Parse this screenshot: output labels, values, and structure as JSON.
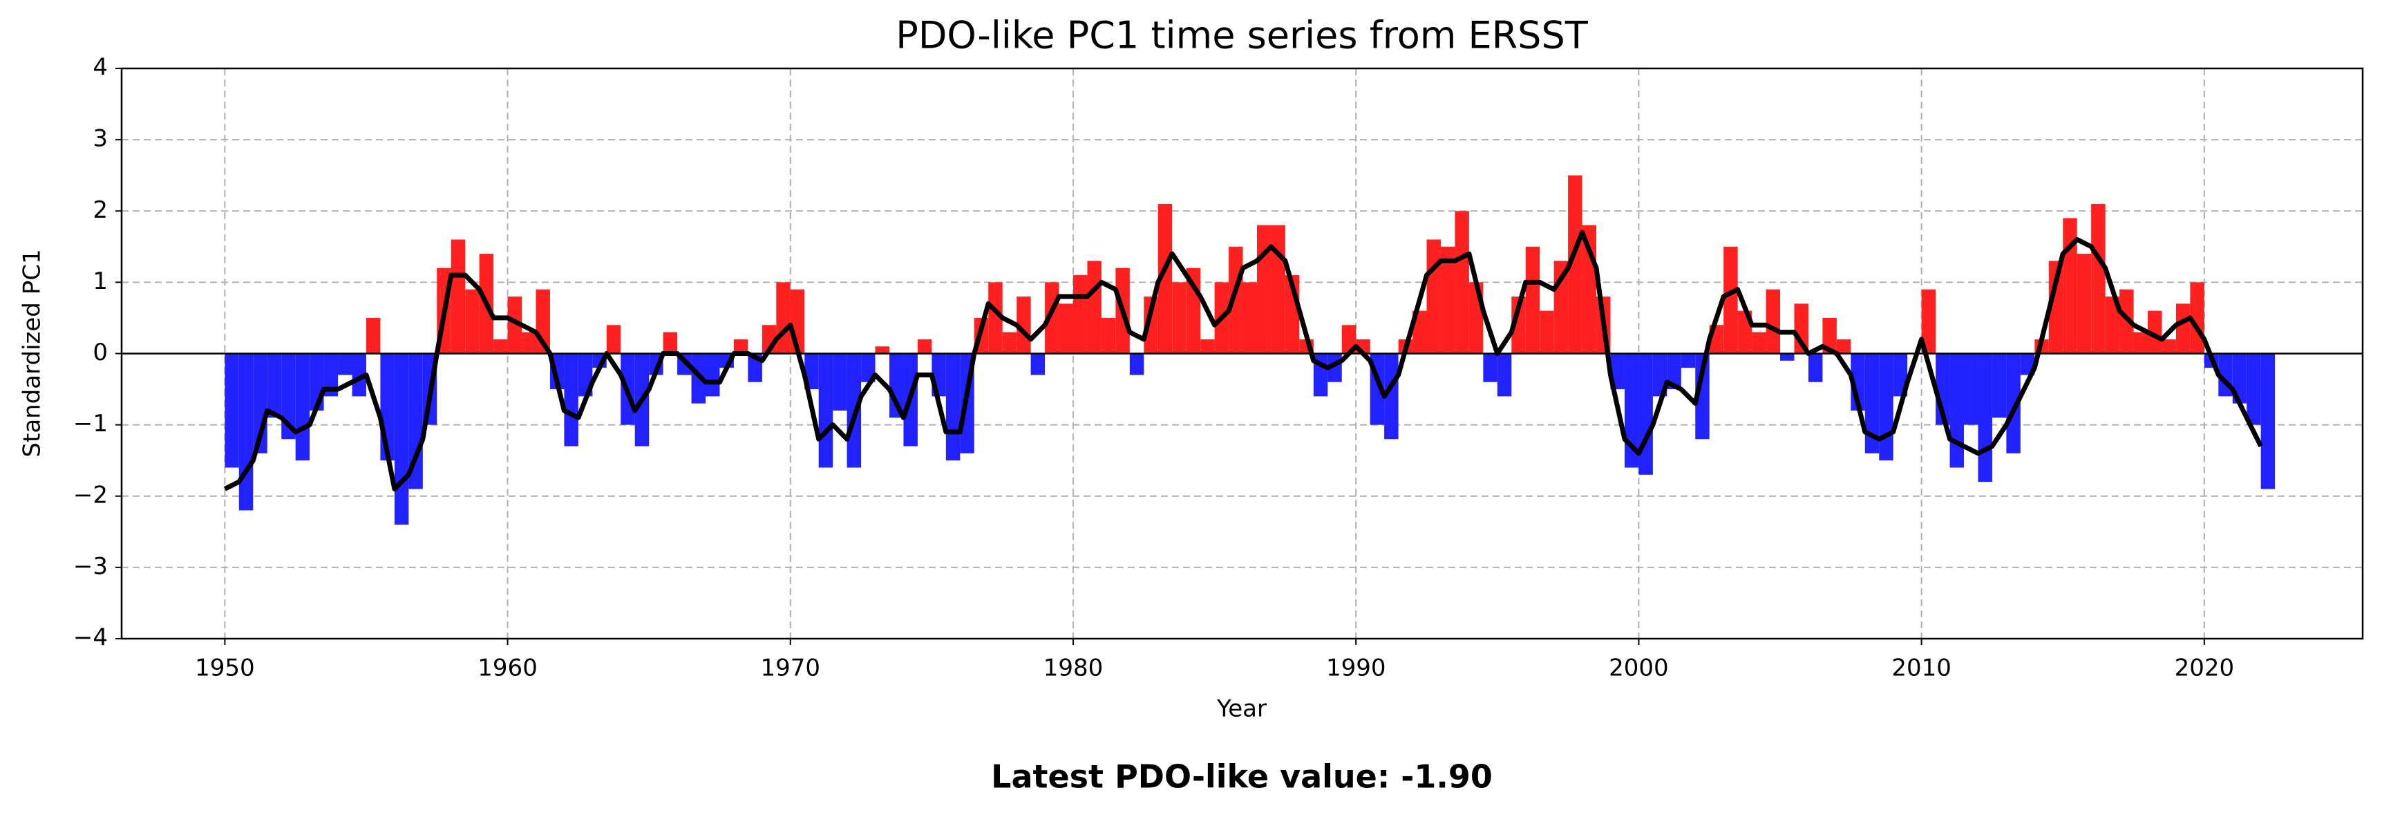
{
  "chart_data": {
    "type": "area",
    "title": "PDO-like PC1 time series from ERSST",
    "x_label": "Year",
    "y_label": "Standardized PC1",
    "annotation": "Latest PDO-like value: -1.90",
    "x": [
      1950,
      1950.5,
      1951,
      1951.5,
      1952,
      1952.5,
      1953,
      1953.5,
      1954,
      1954.5,
      1955,
      1955.5,
      1956,
      1956.5,
      1957,
      1957.5,
      1958,
      1958.5,
      1959,
      1959.5,
      1960,
      1960.5,
      1961,
      1961.5,
      1962,
      1962.5,
      1963,
      1963.5,
      1964,
      1964.5,
      1965,
      1965.5,
      1966,
      1966.5,
      1967,
      1967.5,
      1968,
      1968.5,
      1969,
      1969.5,
      1970,
      1970.5,
      1971,
      1971.5,
      1972,
      1972.5,
      1973,
      1973.5,
      1974,
      1974.5,
      1975,
      1975.5,
      1976,
      1976.5,
      1977,
      1977.5,
      1978,
      1978.5,
      1979,
      1979.5,
      1980,
      1980.5,
      1981,
      1981.5,
      1982,
      1982.5,
      1983,
      1983.5,
      1984,
      1984.5,
      1985,
      1985.5,
      1986,
      1986.5,
      1987,
      1987.5,
      1988,
      1988.5,
      1989,
      1989.5,
      1990,
      1990.5,
      1991,
      1991.5,
      1992,
      1992.5,
      1993,
      1993.5,
      1994,
      1994.5,
      1995,
      1995.5,
      1996,
      1996.5,
      1997,
      1997.5,
      1998,
      1998.5,
      1999,
      1999.5,
      2000,
      2000.5,
      2001,
      2001.5,
      2002,
      2002.5,
      2003,
      2003.5,
      2004,
      2004.5,
      2005,
      2005.5,
      2006,
      2006.5,
      2007,
      2007.5,
      2008,
      2008.5,
      2009,
      2009.5,
      2010,
      2010.5,
      2011,
      2011.5,
      2012,
      2012.5,
      2013,
      2013.5,
      2014,
      2014.5,
      2015,
      2015.5,
      2016,
      2016.5,
      2017,
      2017.5,
      2018,
      2018.5,
      2019,
      2019.5,
      2020,
      2020.5,
      2021,
      2021.5,
      2022
    ],
    "series": [
      {
        "fill": true,
        "positive_color": "#ff2020",
        "negative_color": "#2222ff",
        "values": [
          -1.6,
          -2.2,
          -1.4,
          -0.9,
          -1.2,
          -1.5,
          -0.8,
          -0.6,
          -0.3,
          -0.6,
          0.5,
          -1.5,
          -2.4,
          -1.9,
          -1.0,
          1.2,
          1.6,
          0.9,
          1.4,
          0.2,
          0.8,
          0.3,
          0.9,
          -0.5,
          -1.3,
          -0.6,
          -0.2,
          0.4,
          -1.0,
          -1.3,
          -0.3,
          0.3,
          -0.3,
          -0.7,
          -0.6,
          -0.2,
          0.2,
          -0.4,
          0.4,
          1.0,
          0.9,
          -0.5,
          -1.6,
          -0.8,
          -1.6,
          -0.4,
          0.1,
          -0.9,
          -1.3,
          0.2,
          -0.6,
          -1.5,
          -1.4,
          0.5,
          1.0,
          0.3,
          0.8,
          -0.3,
          1.0,
          0.7,
          1.1,
          1.3,
          0.5,
          1.2,
          -0.3,
          0.8,
          2.1,
          1.0,
          1.2,
          0.2,
          1.0,
          1.5,
          1.0,
          1.8,
          1.8,
          1.1,
          0.2,
          -0.6,
          -0.4,
          0.4,
          0.2,
          -1.0,
          -1.2,
          0.2,
          0.6,
          1.6,
          1.5,
          2.0,
          1.0,
          -0.4,
          -0.6,
          0.8,
          1.5,
          0.6,
          1.3,
          2.5,
          1.8,
          0.8,
          -0.5,
          -1.6,
          -1.7,
          -0.6,
          -0.5,
          -0.2,
          -1.2,
          0.4,
          1.5,
          0.6,
          0.3,
          0.9,
          -0.1,
          0.7,
          -0.4,
          0.5,
          0.2,
          -0.8,
          -1.4,
          -1.5,
          -0.6,
          0.0,
          0.9,
          -1.0,
          -1.6,
          -1.0,
          -1.8,
          -0.9,
          -1.4,
          -0.3,
          0.2,
          1.3,
          1.9,
          1.4,
          2.1,
          0.8,
          0.9,
          0.3,
          0.6,
          0.2,
          0.7,
          1.0,
          -0.2,
          -0.6,
          -0.7,
          -1.0,
          -1.9
        ]
      },
      {
        "color": "#000000",
        "values": [
          -1.9,
          -1.8,
          -1.5,
          -0.8,
          -0.9,
          -1.1,
          -1.0,
          -0.5,
          -0.5,
          -0.4,
          -0.3,
          -0.9,
          -1.9,
          -1.7,
          -1.2,
          0.0,
          1.1,
          1.1,
          0.9,
          0.5,
          0.5,
          0.4,
          0.3,
          0.0,
          -0.8,
          -0.9,
          -0.4,
          0.0,
          -0.3,
          -0.8,
          -0.5,
          0.0,
          0.0,
          -0.2,
          -0.4,
          -0.4,
          0.0,
          0.0,
          -0.1,
          0.2,
          0.4,
          -0.3,
          -1.2,
          -1.0,
          -1.2,
          -0.6,
          -0.3,
          -0.5,
          -0.9,
          -0.3,
          -0.3,
          -1.1,
          -1.1,
          0.0,
          0.7,
          0.5,
          0.4,
          0.2,
          0.4,
          0.8,
          0.8,
          0.8,
          1.0,
          0.9,
          0.3,
          0.2,
          1.0,
          1.4,
          1.1,
          0.8,
          0.4,
          0.6,
          1.2,
          1.3,
          1.5,
          1.3,
          0.6,
          -0.1,
          -0.2,
          -0.1,
          0.1,
          -0.1,
          -0.6,
          -0.3,
          0.4,
          1.1,
          1.3,
          1.3,
          1.4,
          0.6,
          0.0,
          0.3,
          1.0,
          1.0,
          0.9,
          1.2,
          1.7,
          1.2,
          -0.3,
          -1.2,
          -1.4,
          -1.0,
          -0.4,
          -0.5,
          -0.7,
          0.2,
          0.8,
          0.9,
          0.4,
          0.4,
          0.3,
          0.3,
          0.0,
          0.1,
          0.0,
          -0.3,
          -1.1,
          -1.2,
          -1.1,
          -0.4,
          0.2,
          -0.5,
          -1.2,
          -1.3,
          -1.4,
          -1.3,
          -1.0,
          -0.6,
          -0.2,
          0.6,
          1.4,
          1.6,
          1.5,
          1.2,
          0.6,
          0.4,
          0.3,
          0.2,
          0.4,
          0.5,
          0.2,
          -0.3,
          -0.5,
          -0.9,
          -1.3
        ]
      }
    ],
    "xlim": [
      1946.35,
      2025.6
    ],
    "ylim": [
      -4,
      4
    ],
    "xticks": [
      1950,
      1960,
      1970,
      1980,
      1990,
      2000,
      2010,
      2020
    ],
    "yticks": [
      {
        "value": -4,
        "label": "−4"
      },
      {
        "value": -3,
        "label": "−3"
      },
      {
        "value": -2,
        "label": "−2"
      },
      {
        "value": -1,
        "label": "−1"
      },
      0,
      1,
      2,
      3,
      4
    ],
    "grid": true,
    "zero_line": true
  }
}
